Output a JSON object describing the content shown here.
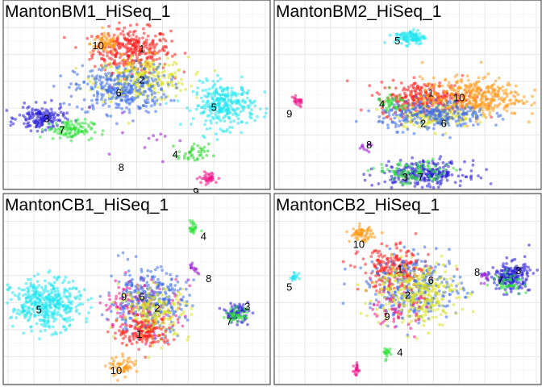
{
  "chart_data": [
    {
      "type": "scatter",
      "title": "MantonBM1_HiSeq_1",
      "xlabel": "",
      "ylabel": "",
      "grid": true,
      "xlim": [
        0,
        100
      ],
      "ylim": [
        0,
        100
      ],
      "clusters": [
        {
          "label": "1",
          "color": "#ff1f1f",
          "cx": 48,
          "cy": 82,
          "sx": 10,
          "sy": 9,
          "n": 320,
          "lx": 52,
          "ly": 83
        },
        {
          "label": "10",
          "color": "#ff9a1a",
          "cx": 38,
          "cy": 86,
          "sx": 4,
          "sy": 4,
          "n": 70,
          "lx": 35,
          "ly": 85
        },
        {
          "label": "2",
          "color": "#d9e21f",
          "cx": 52,
          "cy": 64,
          "sx": 12,
          "sy": 9,
          "n": 260,
          "lx": 52,
          "ly": 64
        },
        {
          "label": "6",
          "color": "#3d6eea",
          "cx": 44,
          "cy": 58,
          "sx": 12,
          "sy": 10,
          "n": 320,
          "lx": 43,
          "ly": 56
        },
        {
          "label": "5",
          "color": "#1fe5f0",
          "cx": 84,
          "cy": 48,
          "sx": 8,
          "sy": 9,
          "n": 300,
          "lx": 80,
          "ly": 47
        },
        {
          "label": "3",
          "color": "#2a1fd9",
          "cx": 13,
          "cy": 40,
          "sx": 6,
          "sy": 5,
          "n": 160,
          "lx": 15,
          "ly": 40
        },
        {
          "label": "7",
          "color": "#2fe03a",
          "cx": 24,
          "cy": 33,
          "sx": 6,
          "sy": 4,
          "n": 110,
          "lx": 21,
          "ly": 33
        },
        {
          "label": "4",
          "color": "#27d62a",
          "cx": 72,
          "cy": 18,
          "sx": 4,
          "sy": 4,
          "n": 40,
          "lx": 65,
          "ly": 18
        },
        {
          "label": "9",
          "color": "#f0168a",
          "cx": 78,
          "cy": 3,
          "sx": 2.5,
          "sy": 2.5,
          "n": 40,
          "lx": 73,
          "ly": -5
        },
        {
          "label": "8",
          "color": "#9b14d6",
          "cx": 50,
          "cy": 30,
          "sx": 10,
          "sy": 12,
          "n": 12,
          "lx": 44,
          "ly": 10
        }
      ]
    },
    {
      "type": "scatter",
      "title": "MantonBM2_HiSeq_1",
      "xlabel": "",
      "ylabel": "",
      "grid": true,
      "xlim": [
        0,
        100
      ],
      "ylim": [
        0,
        100
      ],
      "clusters": [
        {
          "label": "5",
          "color": "#1fe5f0",
          "cx": 51,
          "cy": 90,
          "sx": 4,
          "sy": 3,
          "n": 110,
          "lx": 46,
          "ly": 88
        },
        {
          "label": "1",
          "color": "#ff1f1f",
          "cx": 57,
          "cy": 52,
          "sx": 12,
          "sy": 7,
          "n": 300,
          "lx": 59,
          "ly": 56
        },
        {
          "label": "10",
          "color": "#ff9a1a",
          "cx": 75,
          "cy": 53,
          "sx": 13,
          "sy": 8,
          "n": 380,
          "lx": 70,
          "ly": 53
        },
        {
          "label": "2",
          "color": "#d9e21f",
          "cx": 60,
          "cy": 42,
          "sx": 10,
          "sy": 5,
          "n": 160,
          "lx": 56,
          "ly": 37
        },
        {
          "label": "6",
          "color": "#3d6eea",
          "cx": 60,
          "cy": 42,
          "sx": 14,
          "sy": 6,
          "n": 260,
          "lx": 64,
          "ly": 37
        },
        {
          "label": "4",
          "color": "#2fe03a",
          "cx": 44,
          "cy": 49,
          "sx": 4,
          "sy": 4,
          "n": 40,
          "lx": 40,
          "ly": 49
        },
        {
          "label": "9",
          "color": "#f0168a",
          "cx": 7,
          "cy": 50,
          "sx": 2,
          "sy": 2,
          "n": 25,
          "lx": 4,
          "ly": 43
        },
        {
          "label": "8",
          "color": "#9b14d6",
          "cx": 34,
          "cy": 21,
          "sx": 3,
          "sy": 3,
          "n": 10,
          "lx": 35,
          "ly": 24
        },
        {
          "label": "3",
          "color": "#2a1fd9",
          "cx": 56,
          "cy": 6,
          "sx": 11,
          "sy": 5,
          "n": 260,
          "lx": 49,
          "ly": 4
        },
        {
          "label": "7",
          "color": "#2fe03a",
          "cx": 52,
          "cy": 6,
          "sx": 10,
          "sy": 5,
          "n": 100,
          "lx": 55,
          "ly": 4
        }
      ]
    },
    {
      "type": "scatter",
      "title": "MantonCB1_HiSeq_1",
      "xlabel": "",
      "ylabel": "",
      "grid": true,
      "xlim": [
        0,
        100
      ],
      "ylim": [
        0,
        100
      ],
      "clusters": [
        {
          "label": "4",
          "color": "#2fe03a",
          "cx": 72,
          "cy": 92,
          "sx": 1,
          "sy": 3,
          "n": 25,
          "lx": 76,
          "ly": 87
        },
        {
          "label": "8",
          "color": "#9b14d6",
          "cx": 72,
          "cy": 68,
          "sx": 1.2,
          "sy": 4,
          "n": 14,
          "lx": 78,
          "ly": 61
        },
        {
          "label": "5",
          "color": "#1fe5f0",
          "cx": 15,
          "cy": 45,
          "sx": 9,
          "sy": 10,
          "n": 420,
          "lx": 12,
          "ly": 42
        },
        {
          "label": "9",
          "color": "#f0168a",
          "cx": 52,
          "cy": 45,
          "sx": 10,
          "sy": 11,
          "n": 160,
          "lx": 45,
          "ly": 50
        },
        {
          "label": "6",
          "color": "#3d6eea",
          "cx": 54,
          "cy": 47,
          "sx": 10,
          "sy": 13,
          "n": 300,
          "lx": 52,
          "ly": 50
        },
        {
          "label": "2",
          "color": "#d9e21f",
          "cx": 57,
          "cy": 40,
          "sx": 9,
          "sy": 11,
          "n": 200,
          "lx": 58,
          "ly": 43
        },
        {
          "label": "1",
          "color": "#ff1f1f",
          "cx": 53,
          "cy": 28,
          "sx": 7,
          "sy": 6,
          "n": 140,
          "lx": 51,
          "ly": 27
        },
        {
          "label": "10",
          "color": "#ff9a1a",
          "cx": 45,
          "cy": 7,
          "sx": 4,
          "sy": 4,
          "n": 60,
          "lx": 42,
          "ly": 5
        },
        {
          "label": "3",
          "color": "#2a1fd9",
          "cx": 89,
          "cy": 40,
          "sx": 3,
          "sy": 4,
          "n": 80,
          "lx": 93,
          "ly": 44
        },
        {
          "label": "7",
          "color": "#2fe03a",
          "cx": 89,
          "cy": 38,
          "sx": 3,
          "sy": 3,
          "n": 40,
          "lx": 86,
          "ly": 35
        }
      ]
    },
    {
      "type": "scatter",
      "title": "MantonCB2_HiSeq_1",
      "xlabel": "",
      "ylabel": "",
      "grid": true,
      "xlim": [
        0,
        100
      ],
      "ylim": [
        0,
        100
      ],
      "clusters": [
        {
          "label": "10",
          "color": "#ff9a1a",
          "cx": 32,
          "cy": 88,
          "sx": 3,
          "sy": 3,
          "n": 70,
          "lx": 31,
          "ly": 82
        },
        {
          "label": "1",
          "color": "#ff1f1f",
          "cx": 45,
          "cy": 66,
          "sx": 9,
          "sy": 9,
          "n": 220,
          "lx": 47,
          "ly": 67
        },
        {
          "label": "6",
          "color": "#3d6eea",
          "cx": 53,
          "cy": 55,
          "sx": 12,
          "sy": 13,
          "n": 300,
          "lx": 59,
          "ly": 60
        },
        {
          "label": "2",
          "color": "#d9e21f",
          "cx": 53,
          "cy": 52,
          "sx": 11,
          "sy": 13,
          "n": 330,
          "lx": 50,
          "ly": 51
        },
        {
          "label": "9",
          "color": "#f0168a",
          "cx": 46,
          "cy": 42,
          "sx": 6,
          "sy": 8,
          "n": 60,
          "lx": 42,
          "ly": 38
        },
        {
          "label": "5",
          "color": "#1fe5f0",
          "cx": 6,
          "cy": 62,
          "sx": 1.2,
          "sy": 1.5,
          "n": 20,
          "lx": 4,
          "ly": 56
        },
        {
          "label": "3",
          "color": "#2a1fd9",
          "cx": 90,
          "cy": 62,
          "sx": 5,
          "sy": 6,
          "n": 200,
          "lx": 93,
          "ly": 66
        },
        {
          "label": "7",
          "color": "#2fe03a",
          "cx": 89,
          "cy": 59,
          "sx": 4,
          "sy": 4,
          "n": 40,
          "lx": 86,
          "ly": 60
        },
        {
          "label": "8",
          "color": "#9b14d6",
          "cx": 80,
          "cy": 62,
          "sx": 1.5,
          "sy": 2,
          "n": 12,
          "lx": 77,
          "ly": 65
        },
        {
          "label": "4",
          "color": "#2fe03a",
          "cx": 42,
          "cy": 15,
          "sx": 1.5,
          "sy": 3,
          "n": 18,
          "lx": 47,
          "ly": 16
        },
        {
          "label": "4",
          "color": "#f0168a",
          "cx": 30,
          "cy": 5,
          "sx": 0.6,
          "sy": 3,
          "n": 22,
          "lx": null,
          "ly": null
        }
      ]
    }
  ]
}
